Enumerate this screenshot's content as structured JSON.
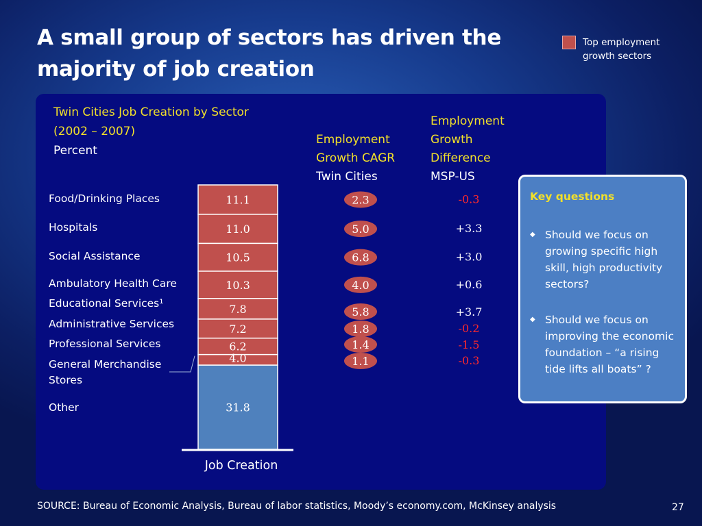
{
  "title": "A small group of sectors has driven the majority of job creation",
  "legend": {
    "label": "Top employment growth sectors",
    "color": "#c0504d"
  },
  "chart_title": {
    "line1": "Twin Cities Job Creation by Sector",
    "line2": "(2002 – 2007)",
    "unit": "Percent"
  },
  "col_cagr": {
    "l1": "Employment",
    "l2": "Growth CAGR",
    "l3": "Twin Cities"
  },
  "col_diff": {
    "l1": "Employment",
    "l2": "Growth",
    "l3": "Difference",
    "l4": "MSP-US"
  },
  "x_label": "Job Creation",
  "chart_data": {
    "type": "bar",
    "stacked": true,
    "unit": "Percent",
    "categories": [
      "Food/Drinking Places",
      "Hospitals",
      "Social Assistance",
      "Ambulatory Health Care",
      "Educational Services¹",
      "Administrative Services",
      "Professional Services",
      "General Merchandise Stores",
      "Other"
    ],
    "values": [
      11.1,
      11.0,
      10.5,
      10.3,
      7.8,
      7.2,
      6.2,
      4.0,
      31.8
    ],
    "value_labels": [
      "11.1",
      "11.0",
      "10.5",
      "10.3",
      "7.8",
      "7.2",
      "6.2",
      "4.0",
      "31.8"
    ],
    "top_sector": [
      true,
      true,
      true,
      true,
      true,
      true,
      true,
      true,
      false
    ],
    "cagr": [
      "2.3",
      "5.0",
      "6.8",
      "4.0",
      "5.8",
      "1.8",
      "1.4",
      "1.1",
      ""
    ],
    "diff": [
      "-0.3",
      "+3.3",
      "+3.0",
      "+0.6",
      "+3.7",
      "-0.2",
      "-1.5",
      "-0.3",
      ""
    ],
    "colors": {
      "top": "#c0504d",
      "other": "#4f81bd",
      "negative": "#ff2a2a",
      "positive": "#ffffff"
    }
  },
  "key_questions": {
    "heading": "Key questions",
    "q1": "Should we focus on growing specific high skill, high productivity sectors?",
    "q2": "Should we focus on improving the economic foundation – “a rising tide lifts all boats” ?"
  },
  "source": "SOURCE: Bureau of Economic Analysis, Bureau of labor statistics, Moody’s economy.com, McKinsey analysis",
  "page_number": "27"
}
